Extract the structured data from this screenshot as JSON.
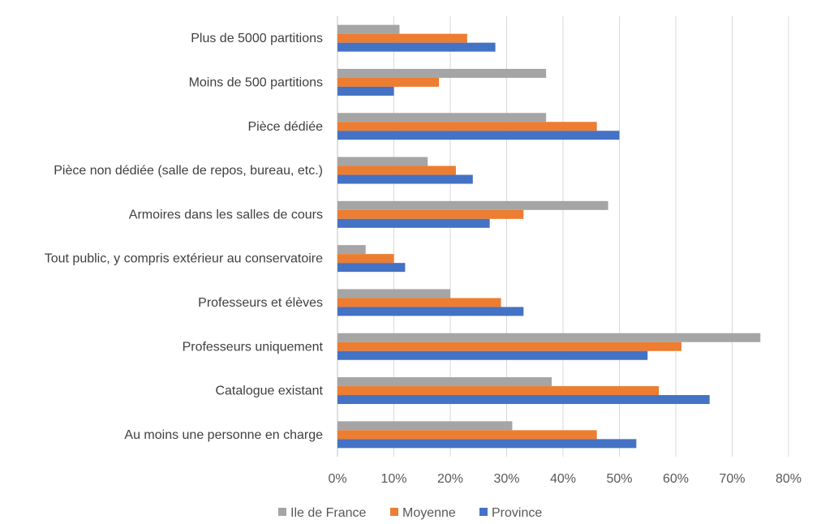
{
  "chart_data": {
    "type": "bar",
    "orientation": "horizontal",
    "title": "",
    "xlabel": "",
    "ylabel": "",
    "xlim": [
      0,
      80
    ],
    "x_ticks": [
      "0%",
      "10%",
      "20%",
      "30%",
      "40%",
      "50%",
      "60%",
      "70%",
      "80%"
    ],
    "grid": "vertical",
    "legend_position": "bottom",
    "categories": [
      "Plus de 5000 partitions",
      "Moins de 500 partitions",
      "Pièce dédiée",
      "Pièce non dédiée (salle de repos, bureau, etc.)",
      "Armoires dans les salles de cours",
      "Tout public, y compris extérieur au conservatoire",
      "Professeurs et élèves",
      "Professeurs uniquement",
      "Catalogue existant",
      "Au moins une personne en charge"
    ],
    "series": [
      {
        "name": "Ile de France",
        "color": "#a5a5a5",
        "values": [
          11,
          37,
          37,
          16,
          48,
          5,
          20,
          75,
          38,
          31
        ]
      },
      {
        "name": "Moyenne",
        "color": "#ed7d31",
        "values": [
          23,
          18,
          46,
          21,
          33,
          10,
          29,
          61,
          57,
          46
        ]
      },
      {
        "name": "Province",
        "color": "#4472c4",
        "values": [
          28,
          10,
          50,
          24,
          27,
          12,
          33,
          55,
          66,
          53
        ]
      }
    ]
  }
}
